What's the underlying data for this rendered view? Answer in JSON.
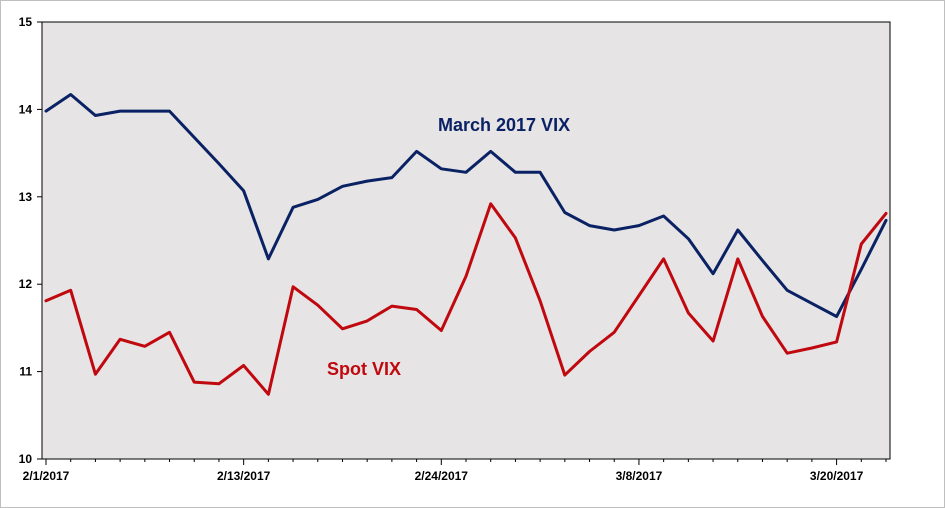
{
  "chart_data": {
    "type": "line",
    "title": "",
    "xlabel": "",
    "ylabel": "",
    "ylim": [
      10,
      15
    ],
    "yticks": [
      10,
      11,
      12,
      13,
      14,
      15
    ],
    "x_tick_labels": [
      "2/1/2017",
      "2/13/2017",
      "2/24/2017",
      "3/8/2017",
      "3/20/2017"
    ],
    "x": [
      "2/1/2017",
      "2/2/2017",
      "2/3/2017",
      "2/6/2017",
      "2/7/2017",
      "2/8/2017",
      "2/9/2017",
      "2/10/2017",
      "2/13/2017",
      "2/14/2017",
      "2/15/2017",
      "2/16/2017",
      "2/17/2017",
      "2/21/2017",
      "2/22/2017",
      "2/23/2017",
      "2/24/2017",
      "2/27/2017",
      "2/28/2017",
      "3/1/2017",
      "3/2/2017",
      "3/3/2017",
      "3/6/2017",
      "3/7/2017",
      "3/8/2017",
      "3/9/2017",
      "3/10/2017",
      "3/13/2017",
      "3/14/2017",
      "3/15/2017",
      "3/16/2017",
      "3/17/2017",
      "3/20/2017",
      "3/21/2017",
      "3/22/2017"
    ],
    "grid": false,
    "legend": "none",
    "plot_background": "#e6e4e5",
    "series": [
      {
        "name": "March 2017 VIX",
        "color": "#0a2264",
        "values": [
          13.98,
          14.17,
          13.93,
          13.98,
          13.98,
          13.98,
          13.68,
          13.38,
          13.07,
          12.29,
          12.88,
          12.97,
          13.12,
          13.18,
          13.22,
          13.52,
          13.32,
          13.28,
          13.52,
          13.28,
          13.28,
          12.82,
          12.67,
          12.62,
          12.67,
          12.78,
          12.52,
          12.12,
          12.62,
          12.27,
          11.93,
          11.78,
          11.63,
          12.17,
          12.73
        ]
      },
      {
        "name": "Spot VIX",
        "color": "#c0080f",
        "values": [
          11.81,
          11.93,
          10.97,
          11.37,
          11.29,
          11.45,
          10.88,
          10.86,
          11.07,
          10.74,
          11.97,
          11.76,
          11.49,
          11.58,
          11.75,
          11.71,
          11.47,
          12.09,
          12.92,
          12.53,
          11.81,
          10.96,
          11.23,
          11.45,
          11.87,
          12.29,
          11.67,
          11.35,
          12.29,
          11.63,
          11.21,
          11.27,
          11.34,
          12.46,
          12.81
        ]
      }
    ]
  }
}
